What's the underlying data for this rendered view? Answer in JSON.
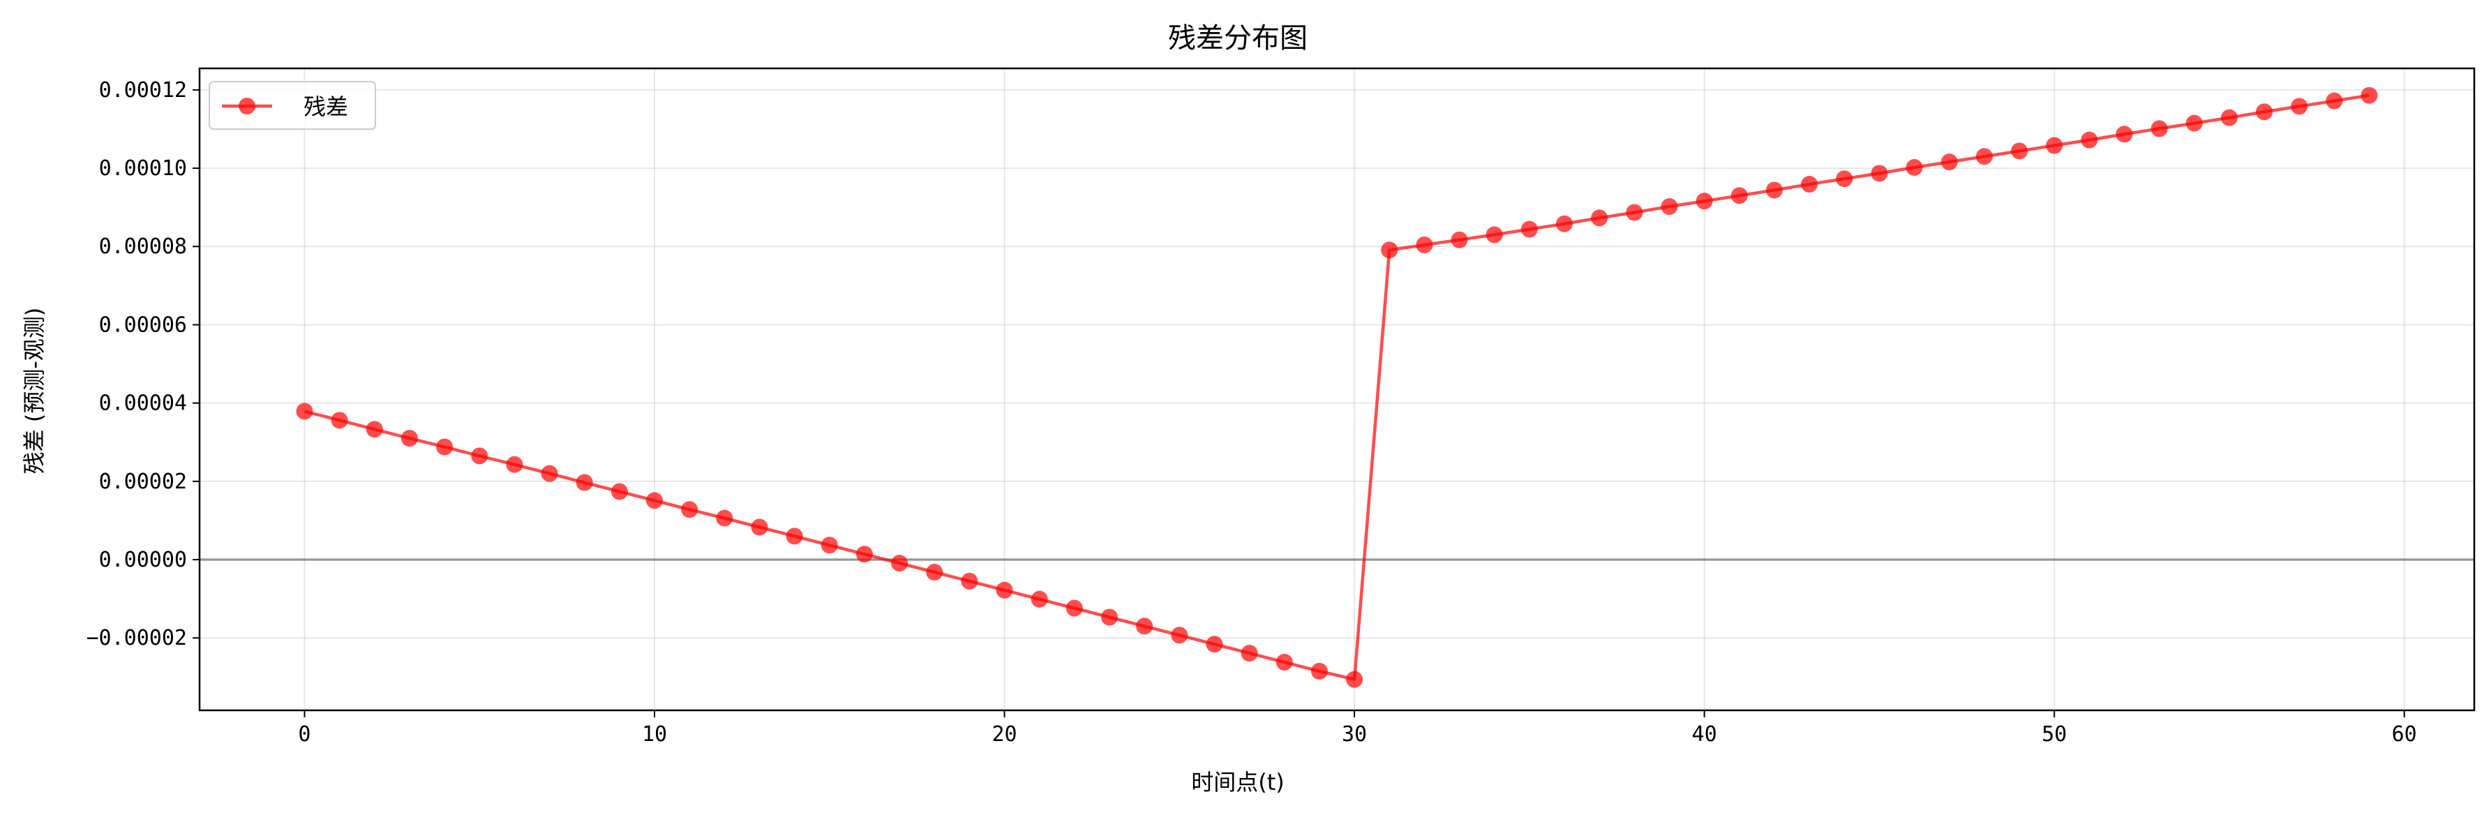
{
  "chart_data": {
    "type": "line",
    "title": "残差分布图",
    "xlabel": "时间点(t)",
    "ylabel": "残差 (预测-观测)",
    "xlim": [
      -3,
      62
    ],
    "ylim": [
      -3.85e-05,
      0.0001255
    ],
    "x_ticks": [
      0,
      10,
      20,
      30,
      40,
      50,
      60
    ],
    "x_tick_labels": [
      "0",
      "10",
      "20",
      "30",
      "40",
      "50",
      "60"
    ],
    "y_ticks": [
      -2e-05,
      0,
      2e-05,
      4e-05,
      6e-05,
      8e-05,
      0.0001,
      0.00012
    ],
    "y_tick_labels": [
      "−0.00002",
      "0.00000",
      "0.00002",
      "0.00004",
      "0.00006",
      "0.00008",
      "0.00010",
      "0.00012"
    ],
    "grid": true,
    "reference_line_y": 0,
    "legend_position": "top-left",
    "series": [
      {
        "name": "残差",
        "color": "#ff0000",
        "marker": "circle",
        "x": [
          0,
          1,
          2,
          3,
          4,
          5,
          6,
          7,
          8,
          9,
          10,
          11,
          12,
          13,
          14,
          15,
          16,
          17,
          18,
          19,
          20,
          21,
          22,
          23,
          24,
          25,
          26,
          27,
          28,
          29,
          30,
          31,
          32,
          33,
          34,
          35,
          36,
          37,
          38,
          39,
          40,
          41,
          42,
          43,
          44,
          45,
          46,
          47,
          48,
          49,
          50,
          51,
          52,
          53,
          54,
          55,
          56,
          57,
          58,
          59
        ],
        "y": [
          3.79e-05,
          3.56e-05,
          3.33e-05,
          3.1e-05,
          2.88e-05,
          2.65e-05,
          2.43e-05,
          2.2e-05,
          1.97e-05,
          1.74e-05,
          1.51e-05,
          1.28e-05,
          1.06e-05,
          8.3e-06,
          6e-06,
          3.7e-06,
          1.4e-06,
          -9e-07,
          -3.2e-06,
          -5.5e-06,
          -7.8e-06,
          -1.01e-05,
          -1.24e-05,
          -1.47e-05,
          -1.7e-05,
          -1.93e-05,
          -2.16e-05,
          -2.39e-05,
          -2.62e-05,
          -2.85e-05,
          -3.06e-05,
          7.91e-05,
          8.04e-05,
          8.17e-05,
          8.3e-05,
          8.44e-05,
          8.58e-05,
          8.73e-05,
          8.87e-05,
          9.02e-05,
          9.16e-05,
          9.3e-05,
          9.44e-05,
          9.59e-05,
          9.73e-05,
          9.87e-05,
          0.0001002,
          0.0001016,
          0.000103,
          0.0001044,
          0.0001058,
          0.0001072,
          0.0001087,
          0.0001101,
          0.0001115,
          0.0001129,
          0.0001144,
          0.0001158,
          0.0001172,
          0.0001186
        ]
      }
    ]
  }
}
